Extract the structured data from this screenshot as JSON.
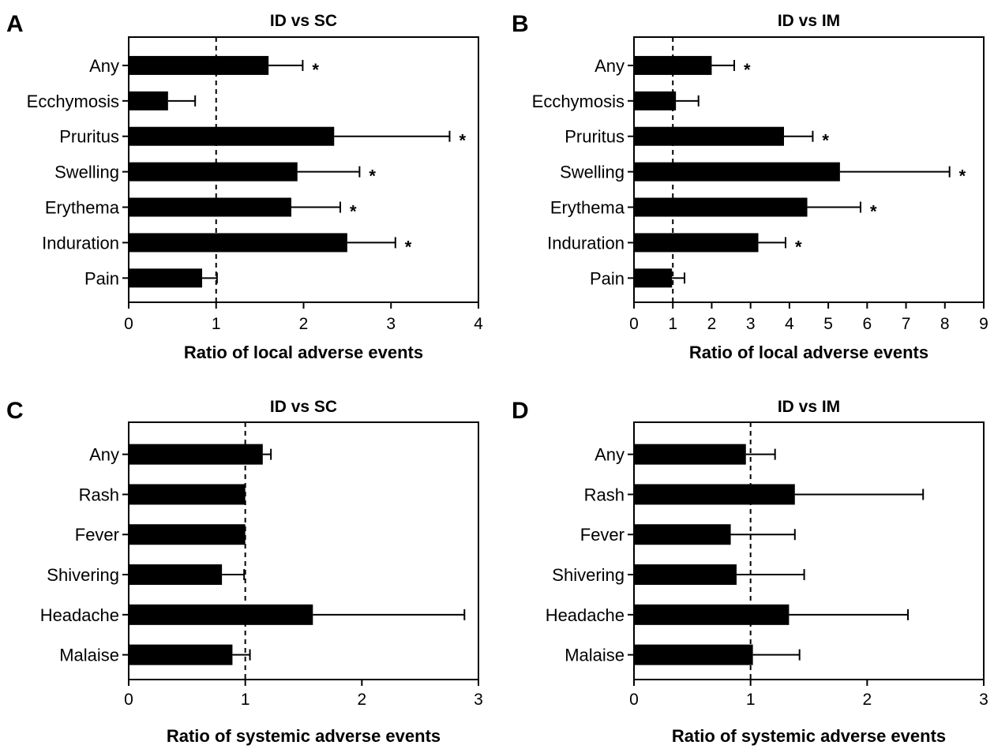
{
  "chart_data": [
    {
      "type": "bar",
      "orientation": "horizontal",
      "panel_letter": "A",
      "title": "ID vs SC",
      "xlabel": "Ratio of local adverse events",
      "xlim": [
        0,
        4
      ],
      "xticks": [
        "0",
        "1",
        "2",
        "3",
        "4"
      ],
      "reference_line": 1,
      "grid": false,
      "categories": [
        "Any",
        "Ecchymosis",
        "Pruritus",
        "Swelling",
        "Erythema",
        "Induration",
        "Pain"
      ],
      "values": [
        1.6,
        0.45,
        2.35,
        1.93,
        1.86,
        2.5,
        0.84
      ],
      "error_upper": [
        1.99,
        0.76,
        3.67,
        2.64,
        2.42,
        3.05,
        1.01
      ],
      "significance": [
        "*",
        "",
        "*",
        "*",
        "*",
        "*",
        ""
      ]
    },
    {
      "type": "bar",
      "orientation": "horizontal",
      "panel_letter": "B",
      "title": "ID vs IM",
      "xlabel": "Ratio of local adverse events",
      "xlim": [
        0,
        9
      ],
      "xticks": [
        "0",
        "1",
        "2",
        "3",
        "4",
        "5",
        "6",
        "7",
        "8",
        "9"
      ],
      "reference_line": 1,
      "grid": false,
      "categories": [
        "Any",
        "Ecchymosis",
        "Pruritus",
        "Swelling",
        "Erythema",
        "Induration",
        "Pain"
      ],
      "values": [
        2.0,
        1.08,
        3.86,
        5.3,
        4.46,
        3.2,
        0.98
      ],
      "error_upper": [
        2.58,
        1.66,
        4.6,
        8.12,
        5.83,
        3.9,
        1.3
      ],
      "significance": [
        "*",
        "",
        "*",
        "*",
        "*",
        "*",
        ""
      ]
    },
    {
      "type": "bar",
      "orientation": "horizontal",
      "panel_letter": "C",
      "title": "ID vs SC",
      "xlabel": "Ratio of systemic adverse events",
      "xlim": [
        0,
        3
      ],
      "xticks": [
        "0",
        "1",
        "2",
        "3"
      ],
      "reference_line": 1,
      "grid": false,
      "categories": [
        "Any",
        "Rash",
        "Fever",
        "Shivering",
        "Headache",
        "Malaise"
      ],
      "values": [
        1.15,
        1.0,
        1.0,
        0.8,
        1.58,
        0.89
      ],
      "error_upper": [
        1.22,
        1.0,
        1.0,
        0.99,
        2.88,
        1.04
      ],
      "significance": [
        "",
        "",
        "",
        "",
        "",
        ""
      ]
    },
    {
      "type": "bar",
      "orientation": "horizontal",
      "panel_letter": "D",
      "title": "ID vs IM",
      "xlabel": "Ratio of systemic adverse events",
      "xlim": [
        0,
        3
      ],
      "xticks": [
        "0",
        "1",
        "2",
        "3"
      ],
      "reference_line": 1,
      "grid": false,
      "categories": [
        "Any",
        "Rash",
        "Fever",
        "Shivering",
        "Headache",
        "Malaise"
      ],
      "values": [
        0.96,
        1.38,
        0.83,
        0.88,
        1.33,
        1.02
      ],
      "error_upper": [
        1.21,
        2.48,
        1.38,
        1.46,
        2.35,
        1.42
      ],
      "significance": [
        "",
        "",
        "",
        "",
        "",
        ""
      ]
    }
  ]
}
